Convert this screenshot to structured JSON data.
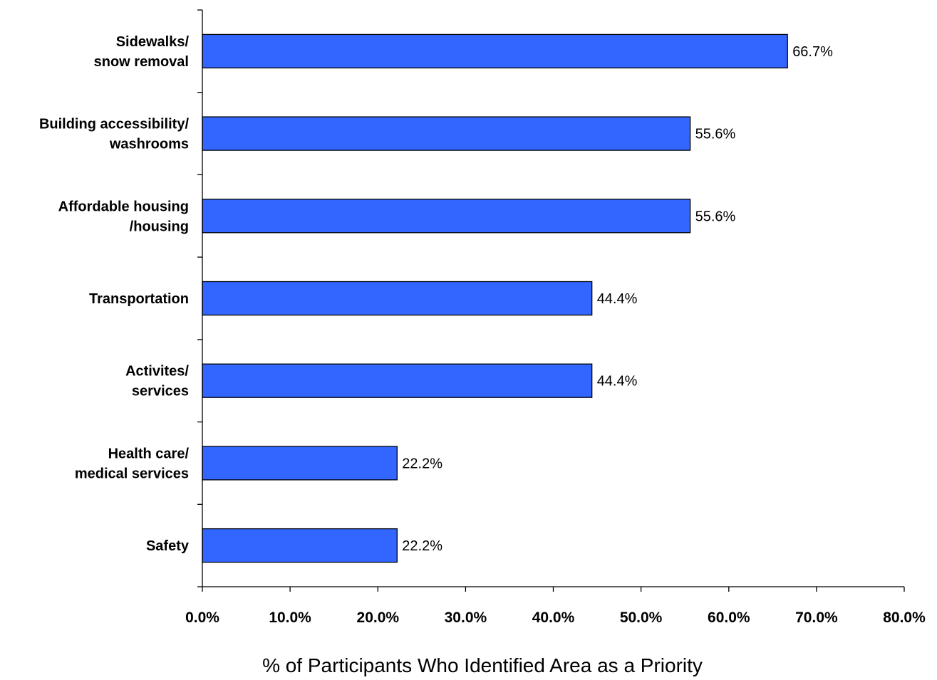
{
  "chart_data": {
    "type": "bar",
    "orientation": "horizontal",
    "categories": [
      [
        "Sidewalks/",
        "snow removal"
      ],
      [
        "Building accessibility/",
        "washrooms"
      ],
      [
        "Affordable housing",
        "/housing"
      ],
      [
        "Transportation"
      ],
      [
        "Activites/",
        "services"
      ],
      [
        "Health care/",
        "medical services"
      ],
      [
        "Safety"
      ]
    ],
    "values": [
      66.7,
      55.6,
      55.6,
      44.4,
      44.4,
      22.2,
      22.2
    ],
    "data_labels": [
      "66.7%",
      "55.6%",
      "55.6%",
      "44.4%",
      "44.4%",
      "22.2%",
      "22.2%"
    ],
    "title": "",
    "xlabel": "% of Participants Who Identified Area as a Priority",
    "ylabel": "",
    "xlim": [
      0,
      80
    ],
    "xticks": [
      0,
      10,
      20,
      30,
      40,
      50,
      60,
      70,
      80
    ],
    "xtick_labels": [
      "0.0%",
      "10.0%",
      "20.0%",
      "30.0%",
      "40.0%",
      "50.0%",
      "60.0%",
      "70.0%",
      "80.0%"
    ],
    "grid": false,
    "legend": "none",
    "colors": {
      "bar": "#3366FF",
      "bar_border": "#000000"
    }
  }
}
